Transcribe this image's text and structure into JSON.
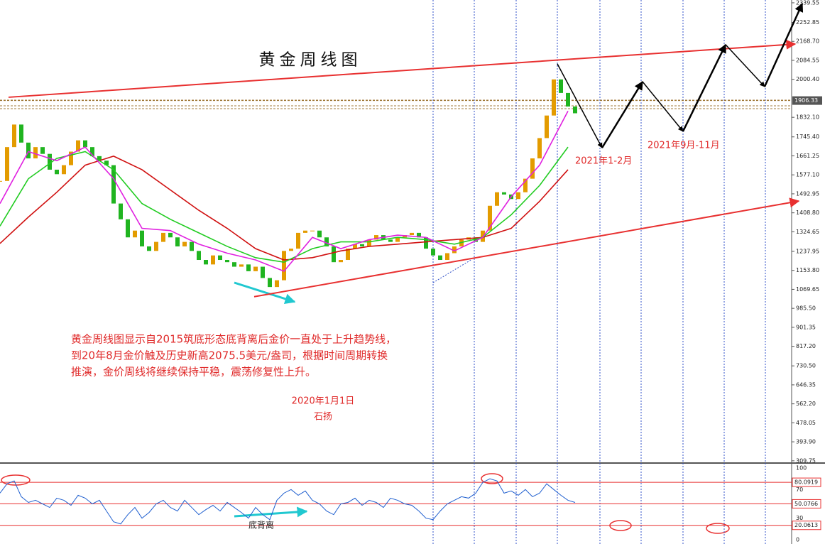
{
  "chart_data": {
    "type": "candlestick",
    "title": "黄金周线图",
    "xlim": [
      0,
      111.5
    ],
    "ylim": [
      303,
      2352
    ],
    "yticks": [
      {
        "value": 2339.55,
        "label": "2339.55"
      },
      2252.85,
      {
        "value": 2168.7,
        "label": "2168.70"
      },
      2084.55,
      {
        "value": 2000.4,
        "label": "2000.40"
      },
      {
        "value": 1832.1,
        "label": "1832.10"
      },
      {
        "value": 1745.4,
        "label": "1745.40"
      },
      1661.25,
      {
        "value": 1577.1,
        "label": "1577.10"
      },
      1492.95,
      {
        "value": 1408.8,
        "label": "1408.80"
      },
      1324.65,
      1237.95,
      {
        "value": 1153.8,
        "label": "1153.80"
      },
      1069.65,
      {
        "value": 985.5,
        "label": "985.50"
      },
      901.35,
      {
        "value": 817.2,
        "label": "817.20"
      },
      {
        "value": 730.5,
        "label": "730.50"
      },
      646.35,
      {
        "value": 562.2,
        "label": "562.20"
      },
      478.05,
      {
        "value": 393.9,
        "label": "393.90"
      },
      309.75
    ],
    "candle_colors": {
      "up": "#e39b00",
      "down": "#20b420"
    },
    "closes": [
      1550,
      1700,
      1800,
      1720,
      1650,
      1700,
      1670,
      1600,
      1580,
      1620,
      1680,
      1730,
      1700,
      1660,
      1640,
      1620,
      1450,
      1380,
      1300,
      1330,
      1260,
      1240,
      1280,
      1320,
      1300,
      1260,
      1280,
      1240,
      1200,
      1180,
      1220,
      1200,
      1190,
      1170,
      1180,
      1150,
      1170,
      1120,
      1080,
      1110,
      1240,
      1250,
      1320,
      1330,
      1330,
      1300,
      1260,
      1190,
      1200,
      1250,
      1270,
      1260,
      1290,
      1310,
      1290,
      1280,
      1300,
      1310,
      1320,
      1300,
      1250,
      1220,
      1200,
      1230,
      1260,
      1290,
      1300,
      1280,
      1330,
      1440,
      1500,
      1490,
      1470,
      1500,
      1560,
      1650,
      1740,
      1840,
      2000,
      1940,
      1880,
      1850
    ],
    "moving_averages": [
      {
        "color": "#d01010",
        "x": [
          0,
          4,
          8,
          12,
          16,
          20,
          24,
          28,
          32,
          36,
          40,
          44,
          48,
          52,
          56,
          60,
          64,
          68,
          72,
          76,
          80
        ],
        "values": [
          1273,
          1390,
          1500,
          1620,
          1660,
          1600,
          1510,
          1420,
          1340,
          1250,
          1200,
          1210,
          1240,
          1260,
          1270,
          1280,
          1290,
          1300,
          1340,
          1460,
          1600
        ]
      },
      {
        "color": "#22cc22",
        "x": [
          0,
          4,
          8,
          12,
          16,
          20,
          24,
          28,
          32,
          36,
          40,
          44,
          48,
          52,
          56,
          60,
          64,
          68,
          72,
          76,
          80
        ],
        "values": [
          1350,
          1560,
          1650,
          1680,
          1600,
          1450,
          1380,
          1320,
          1260,
          1210,
          1190,
          1250,
          1280,
          1280,
          1300,
          1290,
          1270,
          1300,
          1400,
          1530,
          1700
        ]
      },
      {
        "color": "#e020e0",
        "x": [
          0,
          4,
          8,
          12,
          16,
          20,
          24,
          28,
          32,
          36,
          40,
          44,
          48,
          52,
          56,
          60,
          64,
          68,
          72,
          76,
          80
        ],
        "values": [
          1450,
          1680,
          1640,
          1700,
          1560,
          1340,
          1330,
          1270,
          1230,
          1200,
          1150,
          1300,
          1250,
          1290,
          1310,
          1300,
          1240,
          1300,
          1480,
          1620,
          1860
        ]
      }
    ],
    "trendlines": [
      {
        "color": "#e83030",
        "x": [
          1.2,
          112
        ],
        "values": [
          1921,
          2157
        ]
      },
      {
        "color": "#e83030",
        "x": [
          35.8,
          112.5
        ],
        "values": [
          1037,
          1461
        ]
      }
    ],
    "projection": {
      "color": "#000000",
      "x": [
        78.5,
        84.8,
        90.5,
        96.2,
        102.2,
        107.7,
        113
      ],
      "values": [
        2069,
        1697,
        1990,
        1770,
        2154,
        1968,
        2336
      ]
    },
    "cycle_lines": [
      61,
      66.8,
      72.7,
      78.5,
      84.5,
      90.3,
      96.2,
      102,
      107.8
    ],
    "price_level": 1906.33,
    "labels": [
      "2021年1-2月",
      "2021年9月-11月"
    ],
    "note_lines": [
      "黄金周线图显示自2015筑底形态底背离后金价一直处于上升趋势线，",
      "到20年8月金价触及历史新高2075.5美元/盎司，根据时间周期转换",
      "推演，金价周线将继续保持平稳，震荡修复性上升。"
    ],
    "date": "2020年1月1日",
    "author": "石扬",
    "divergence_label": "底背离",
    "oscillator": {
      "color": "#1f5fcf",
      "ylim": [
        0,
        100
      ],
      "yticks": [
        100,
        70,
        30,
        0
      ],
      "levels": [
        80.0919,
        50.0766,
        20.0613
      ],
      "values": [
        65,
        78,
        82,
        60,
        52,
        55,
        50,
        45,
        58,
        55,
        48,
        62,
        58,
        50,
        55,
        40,
        25,
        22,
        35,
        45,
        30,
        38,
        50,
        55,
        45,
        40,
        55,
        45,
        35,
        42,
        48,
        40,
        52,
        45,
        38,
        30,
        45,
        35,
        28,
        55,
        65,
        70,
        62,
        68,
        55,
        50,
        40,
        35,
        50,
        52,
        58,
        48,
        55,
        52,
        45,
        58,
        55,
        50,
        48,
        40,
        30,
        28,
        40,
        50,
        55,
        60,
        58,
        65,
        80,
        85,
        82,
        65,
        68,
        62,
        70,
        60,
        65,
        78,
        70,
        62,
        55,
        52
      ]
    }
  }
}
